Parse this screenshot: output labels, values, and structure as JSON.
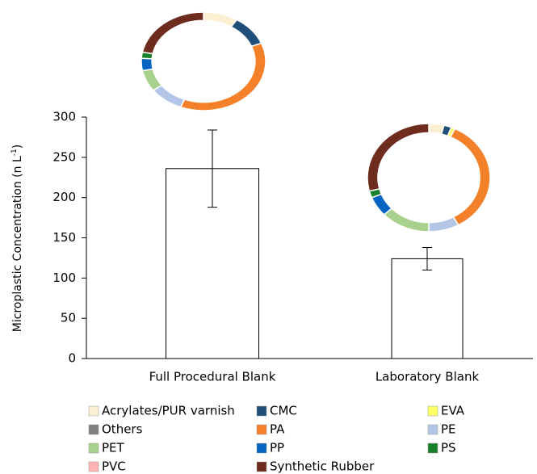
{
  "chart_data": [
    {
      "type": "bar",
      "categories": [
        "Full Procedural Blank",
        "Laboratory Blank"
      ],
      "values": [
        236,
        124
      ],
      "errors": [
        48,
        14
      ],
      "color": "#ffffff",
      "ylabel_parts": [
        "Microplastic Concentration (n L",
        "-1",
        ")"
      ],
      "ylim": [
        0,
        300
      ],
      "yticks": [
        0,
        50,
        100,
        150,
        200,
        250,
        300
      ]
    },
    {
      "type": "donut",
      "categories": [
        "Acrylates/PUR varnish",
        "CMC",
        "EVA",
        "Others",
        "PA",
        "PE",
        "PET",
        "PP",
        "PS",
        "PVC",
        "Synthetic Rubber"
      ],
      "colors": [
        "#fdefd2",
        "#1f4e79",
        "#ffff66",
        "#808080",
        "#f4812a",
        "#b4c6e7",
        "#a9d18e",
        "#0563c1",
        "#1a7f2a",
        "#ffb3b3",
        "#6e2c1f"
      ],
      "values": [
        9,
        10,
        0,
        0,
        37,
        9,
        7,
        4,
        2,
        0,
        22
      ]
    },
    {
      "type": "donut",
      "values": [
        4,
        2,
        1,
        0,
        35,
        8,
        13,
        6,
        2,
        0,
        29
      ]
    }
  ]
}
